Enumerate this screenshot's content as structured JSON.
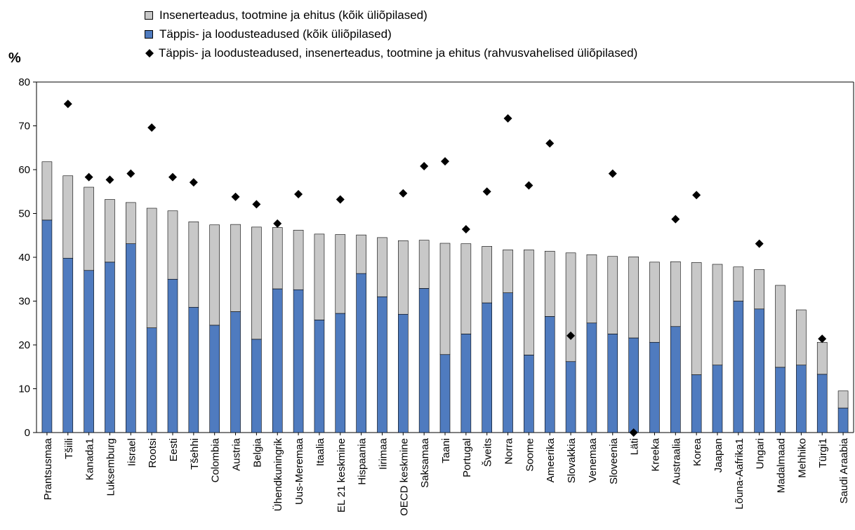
{
  "chart_data": {
    "type": "bar",
    "ylabel": "%",
    "ylim": [
      0,
      80
    ],
    "yticks": [
      0,
      10,
      20,
      30,
      40,
      50,
      60,
      70,
      80
    ],
    "grid": false,
    "legend_position": "top-center",
    "categories": [
      "Prantsusmaa",
      "Tšiili",
      "Kanada1",
      "Luksemburg",
      "Iisrael",
      "Rootsi",
      "Eesti",
      "Tšehhi",
      "Colombia",
      "Austria",
      "Belgia",
      "Ühendkuningrik",
      "Uus-Meremaa",
      "Itaalia",
      "EL 21 keskmine",
      "Hispaania",
      "Iirimaa",
      "OECD keskmine",
      "Saksamaa",
      "Taani",
      "Portugal",
      "Šveits",
      "Norra",
      "Soome",
      "Ameerika",
      "Slovakkia",
      "Venemaa",
      "Sloveenia",
      "Läti",
      "Kreeka",
      "Austraalia",
      "Korea",
      "Jaapan",
      "Lõuna-Aafrika1",
      "Ungari",
      "Madalmaad",
      "Mehhiko",
      "Türgi1",
      "Saudi Araabia"
    ],
    "series": [
      {
        "name": "Insenerteadus, tootmine ja ehitus (kõik üliõpilased)",
        "kind": "stacked-bar",
        "color": "#c8c8c8",
        "values": [
          13.3,
          18.8,
          19.0,
          14.3,
          9.4,
          27.3,
          15.6,
          19.5,
          22.9,
          19.9,
          25.6,
          14.0,
          13.6,
          19.6,
          18.0,
          8.8,
          13.5,
          16.8,
          11.0,
          25.4,
          20.6,
          12.9,
          9.8,
          24.0,
          14.9,
          24.8,
          15.6,
          17.7,
          18.5,
          18.3,
          14.8,
          25.6,
          23.0,
          7.8,
          9.0,
          18.7,
          12.6,
          7.3,
          3.9
        ]
      },
      {
        "name": "Täppis- ja loodusteadused (kõik üliõpilased)",
        "kind": "stacked-bar",
        "color": "#4f7bbf",
        "values": [
          48.5,
          39.8,
          37.0,
          38.9,
          43.1,
          23.9,
          35.0,
          28.6,
          24.5,
          27.6,
          21.3,
          32.8,
          32.6,
          25.7,
          27.2,
          36.3,
          31.0,
          27.0,
          32.9,
          17.8,
          22.5,
          29.6,
          31.9,
          17.7,
          26.5,
          16.2,
          25.0,
          22.5,
          21.6,
          20.6,
          24.2,
          13.2,
          15.4,
          30.0,
          28.2,
          14.9,
          15.4,
          13.3,
          5.6
        ]
      },
      {
        "name": "Täppis- ja loodusteadused, insenerteadus, tootmine ja ehitus (rahvusvahelised üliõpilased)",
        "kind": "marker",
        "color": "#000000",
        "values": [
          null,
          75.0,
          58.3,
          57.7,
          59.1,
          69.6,
          58.3,
          57.1,
          null,
          53.8,
          52.1,
          47.7,
          54.4,
          null,
          53.2,
          null,
          null,
          54.6,
          60.8,
          61.9,
          46.4,
          55.0,
          71.7,
          56.4,
          66.0,
          22.1,
          null,
          59.1,
          0.0,
          null,
          48.7,
          54.2,
          null,
          null,
          43.1,
          null,
          null,
          21.4,
          null
        ]
      }
    ]
  }
}
